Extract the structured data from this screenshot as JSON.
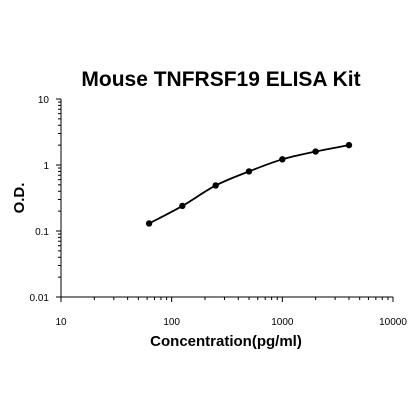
{
  "chart_data": {
    "type": "line",
    "title": "Mouse TNFRSF19 ELISA Kit",
    "xlabel": "Concentration(pg/ml)",
    "ylabel": "O.D.",
    "x_scale": "log",
    "y_scale": "log",
    "xlim": [
      10,
      10000
    ],
    "ylim": [
      0.01,
      10
    ],
    "x_ticks": [
      "10",
      "100",
      "1000",
      "10000"
    ],
    "y_ticks": [
      "0.01",
      "0.1",
      "1",
      "10"
    ],
    "grid": false,
    "legend": "none",
    "series": [
      {
        "x": [
          62.5,
          125,
          250,
          500,
          1000,
          2000,
          4000
        ],
        "y": [
          0.13,
          0.24,
          0.49,
          0.8,
          1.22,
          1.6,
          2.0
        ],
        "color": "#000000",
        "marker": "circle"
      }
    ]
  }
}
